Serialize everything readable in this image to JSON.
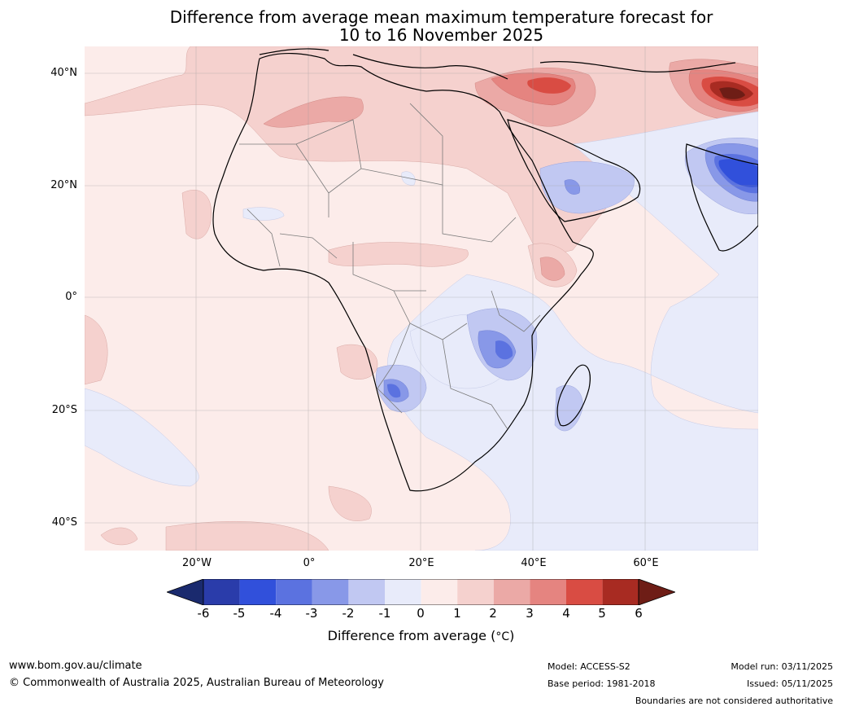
{
  "title": {
    "line1": "Difference from average mean maximum temperature forecast for",
    "line2": "10 to 16 November 2025"
  },
  "axes": {
    "latitude_labels": [
      "40°N",
      "20°N",
      "0°",
      "20°S",
      "40°S"
    ],
    "longitude_labels": [
      "20°W",
      "0°",
      "20°E",
      "40°E",
      "60°E"
    ]
  },
  "colorbar": {
    "label": "Difference from average (°C)",
    "label_prefix": "Difference from average (",
    "label_unit": "°C",
    "label_suffix": ")",
    "ticks": [
      "-6",
      "-5",
      "-4",
      "-3",
      "-2",
      "-1",
      "0",
      "1",
      "2",
      "3",
      "4",
      "5",
      "6"
    ],
    "colors": {
      "below_min": "#1a2a6e",
      "m6_m5": "#2a3caa",
      "m5_m4": "#3150db",
      "m4_m3": "#5b72e0",
      "m3_m2": "#8898e8",
      "m2_m1": "#c1c8f2",
      "m1_0": "#e8ebfa",
      "0_1": "#fcecea",
      "1_2": "#f5d1ce",
      "2_3": "#eba9a6",
      "3_4": "#e58480",
      "4_5": "#d94c43",
      "5_6": "#a82b22",
      "above_max": "#6e1d16"
    }
  },
  "footer": {
    "website": "www.bom.gov.au/climate",
    "copyright": "© Commonwealth of Australia 2025, Australian Bureau of Meteorology",
    "model": "Model: ACCESS-S2",
    "base_period": "Base period: 1981-2018",
    "model_run": "Model run: 03/11/2025",
    "issued": "Issued: 05/11/2025",
    "disclaimer": "Boundaries are not considered authoritative"
  }
}
